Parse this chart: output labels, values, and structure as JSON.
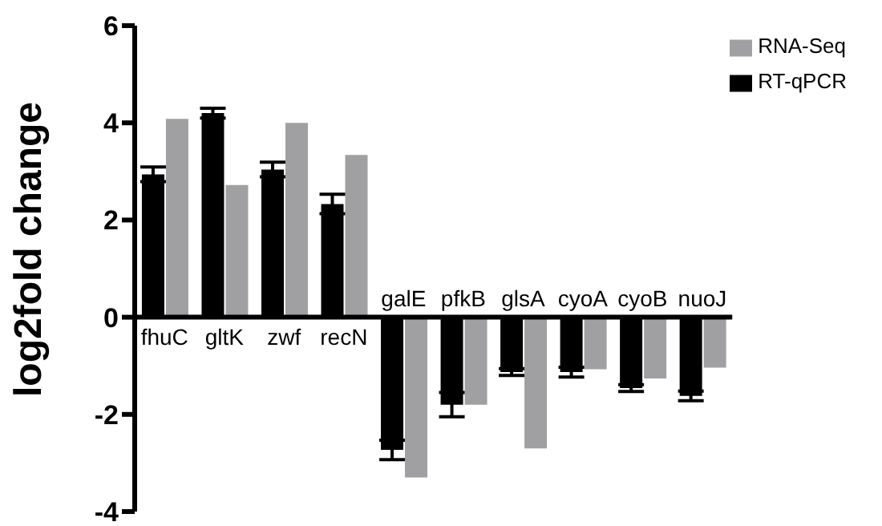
{
  "chart_data": {
    "type": "bar",
    "ylabel": "log2fold change",
    "categories": [
      "fhuC",
      "gltK",
      "zwf",
      "recN",
      "galE",
      "pfkB",
      "glsA",
      "cyoA",
      "cyoB",
      "nuoJ"
    ],
    "series": [
      {
        "name": "RT-qPCR",
        "color": "#000000",
        "values": [
          2.94,
          4.2,
          3.04,
          2.33,
          -2.73,
          -1.8,
          -1.13,
          -1.13,
          -1.46,
          -1.62
        ],
        "errors": [
          0.15,
          0.1,
          0.15,
          0.2,
          0.2,
          0.25,
          0.07,
          0.1,
          0.07,
          0.1
        ]
      },
      {
        "name": "RNA-Seq",
        "color": "#a0a0a3",
        "values": [
          4.08,
          2.72,
          4.0,
          3.34,
          -3.3,
          -1.8,
          -2.7,
          -1.07,
          -1.26,
          -1.04
        ]
      }
    ],
    "ylim": [
      -4,
      6
    ],
    "yticks": [
      -4,
      -2,
      0,
      2,
      4,
      6
    ],
    "grid": false,
    "legend": "top right"
  }
}
